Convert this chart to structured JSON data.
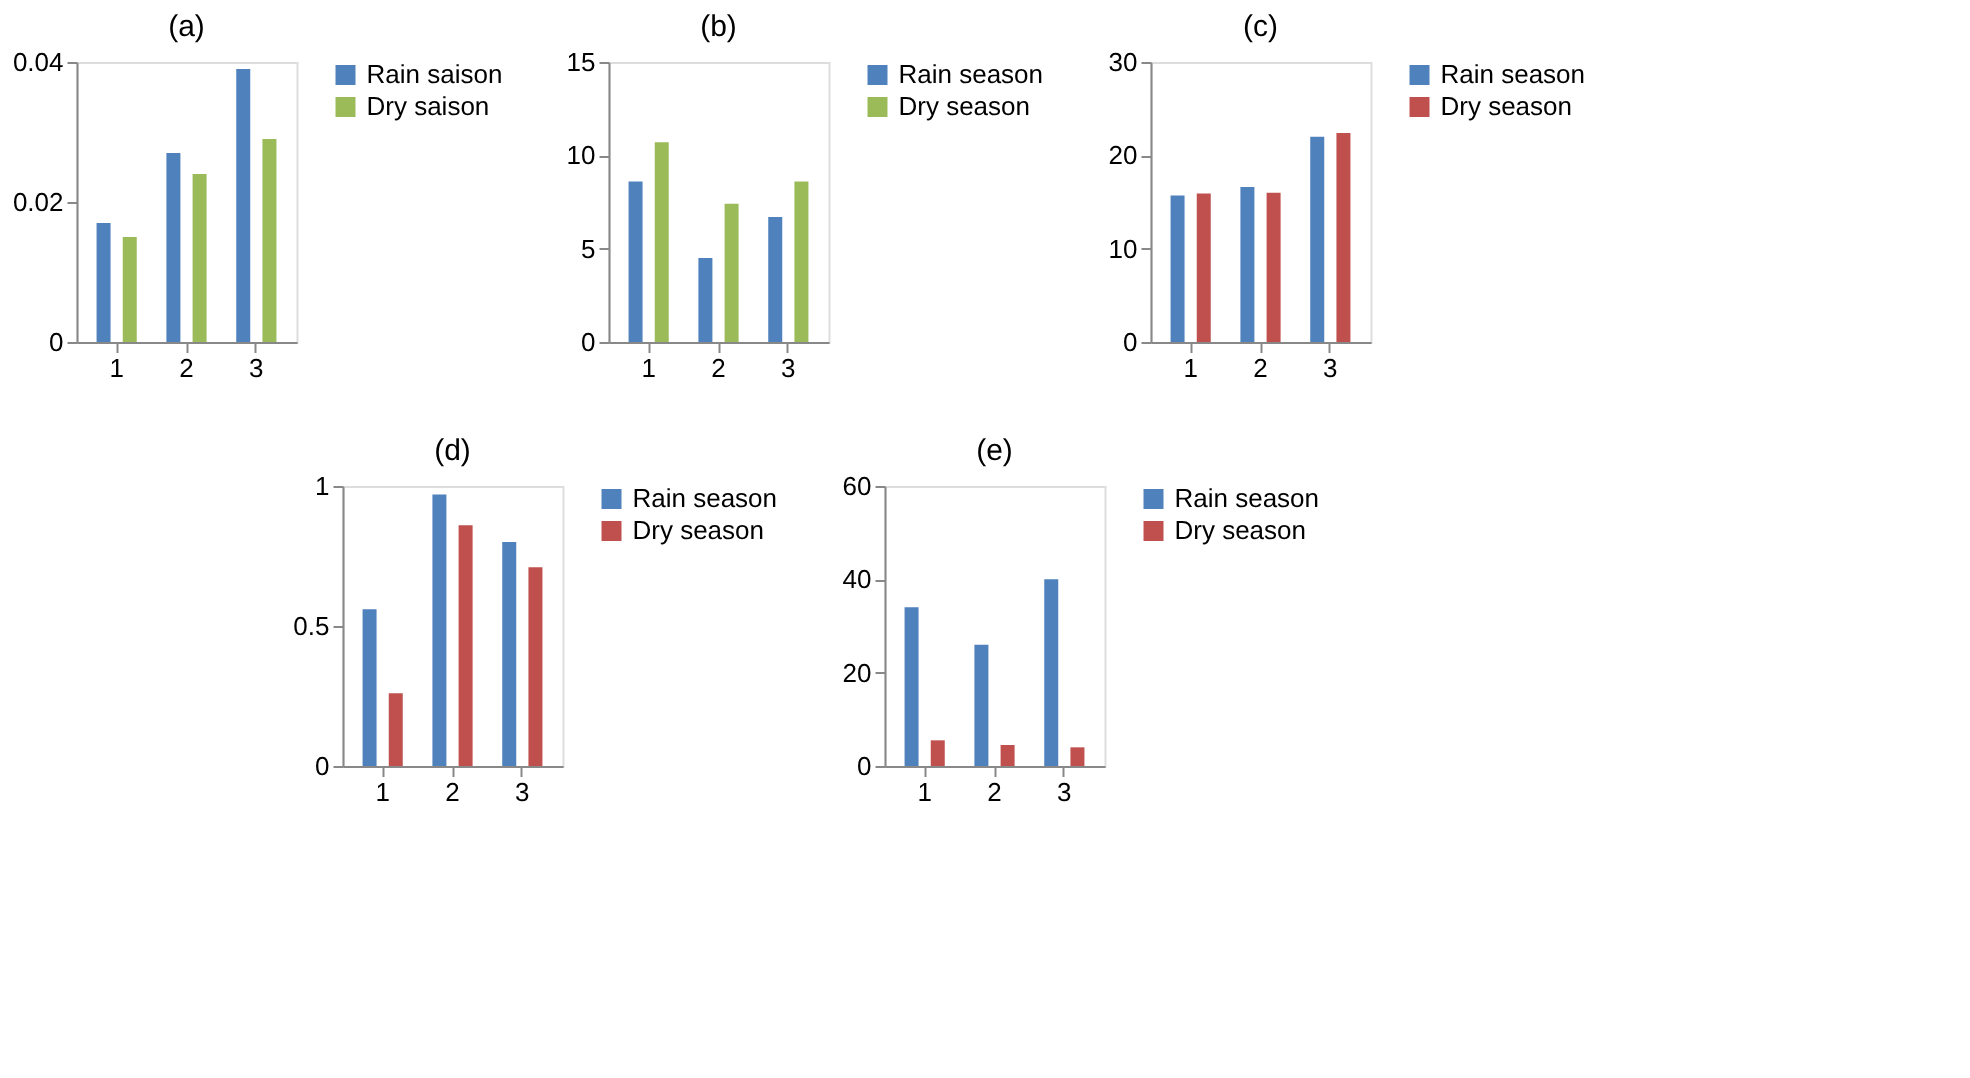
{
  "chart_data": [
    {
      "type": "bar",
      "title": "(a)",
      "categories": [
        "1",
        "2",
        "3"
      ],
      "ylim": [
        0,
        0.04
      ],
      "yticks": [
        0,
        0.02,
        0.04
      ],
      "grid": false,
      "legend": "right",
      "series": [
        {
          "name": "Rain saison",
          "color": "#4f81bd",
          "values": [
            0.017,
            0.027,
            0.039
          ]
        },
        {
          "name": "Dry saison",
          "color": "#9bbb59",
          "values": [
            0.015,
            0.024,
            0.029
          ]
        }
      ]
    },
    {
      "type": "bar",
      "title": "(b)",
      "categories": [
        "1",
        "2",
        "3"
      ],
      "ylim": [
        0,
        15
      ],
      "yticks": [
        0,
        5,
        10,
        15
      ],
      "grid": false,
      "legend": "right",
      "series": [
        {
          "name": "Rain season",
          "color": "#4f81bd",
          "values": [
            8.6,
            4.5,
            6.7
          ]
        },
        {
          "name": "Dry season",
          "color": "#9bbb59",
          "values": [
            10.7,
            7.4,
            8.6
          ]
        }
      ]
    },
    {
      "type": "bar",
      "title": "(c)",
      "categories": [
        "1",
        "2",
        "3"
      ],
      "ylim": [
        0,
        30
      ],
      "yticks": [
        0,
        10,
        20,
        30
      ],
      "grid": false,
      "legend": "right",
      "series": [
        {
          "name": "Rain season",
          "color": "#4f81bd",
          "values": [
            15.7,
            16.6,
            22.0
          ]
        },
        {
          "name": "Dry season",
          "color": "#c0504d",
          "values": [
            15.9,
            16.0,
            22.4
          ]
        }
      ]
    },
    {
      "type": "bar",
      "title": "(d)",
      "categories": [
        "1",
        "2",
        "3"
      ],
      "ylim": [
        0,
        1
      ],
      "yticks": [
        0,
        0.5,
        1
      ],
      "grid": false,
      "legend": "right",
      "series": [
        {
          "name": "Rain season",
          "color": "#4f81bd",
          "values": [
            0.56,
            0.97,
            0.8
          ]
        },
        {
          "name": "Dry season",
          "color": "#c0504d",
          "values": [
            0.26,
            0.86,
            0.71
          ]
        }
      ]
    },
    {
      "type": "bar",
      "title": "(e)",
      "categories": [
        "1",
        "2",
        "3"
      ],
      "ylim": [
        0,
        60
      ],
      "yticks": [
        0,
        20,
        40,
        60
      ],
      "grid": false,
      "legend": "right",
      "series": [
        {
          "name": "Rain season",
          "color": "#4f81bd",
          "values": [
            34,
            26,
            40
          ]
        },
        {
          "name": "Dry season",
          "color": "#c0504d",
          "values": [
            5.5,
            4.5,
            4
          ]
        }
      ]
    }
  ]
}
